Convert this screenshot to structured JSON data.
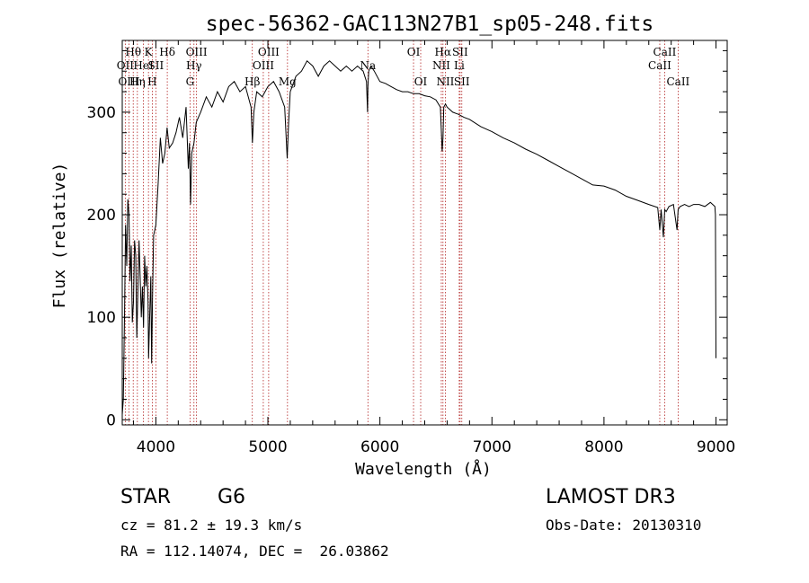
{
  "chart_data": {
    "type": "line",
    "title": "spec-56362-GAC113N27B1_sp05-248.fits",
    "xlabel": "Wavelength (Å)",
    "ylabel": "Flux (relative)",
    "xlim": [
      3700,
      9100
    ],
    "ylim": [
      -5,
      370
    ],
    "xticks": [
      4000,
      5000,
      6000,
      7000,
      8000,
      9000
    ],
    "yticks": [
      0,
      100,
      200,
      300
    ],
    "series": [
      {
        "name": "spectrum",
        "x": [
          3700,
          3710,
          3720,
          3730,
          3740,
          3750,
          3760,
          3770,
          3780,
          3790,
          3800,
          3810,
          3820,
          3830,
          3840,
          3850,
          3860,
          3870,
          3880,
          3890,
          3900,
          3910,
          3920,
          3930,
          3935,
          3945,
          3955,
          3962,
          3970,
          3980,
          4000,
          4020,
          4040,
          4060,
          4080,
          4100,
          4120,
          4150,
          4180,
          4210,
          4240,
          4270,
          4290,
          4300,
          4310,
          4320,
          4340,
          4360,
          4400,
          4450,
          4500,
          4550,
          4600,
          4650,
          4700,
          4750,
          4800,
          4850,
          4862,
          4875,
          4900,
          4950,
          5000,
          5050,
          5100,
          5150,
          5172,
          5185,
          5200,
          5250,
          5300,
          5350,
          5400,
          5450,
          5500,
          5550,
          5600,
          5650,
          5700,
          5750,
          5800,
          5850,
          5880,
          5890,
          5893,
          5900,
          5920,
          5950,
          6000,
          6050,
          6100,
          6150,
          6200,
          6250,
          6300,
          6350,
          6400,
          6450,
          6500,
          6540,
          6556,
          6563,
          6570,
          6585,
          6600,
          6650,
          6700,
          6750,
          6800,
          6900,
          7000,
          7100,
          7200,
          7300,
          7400,
          7500,
          7600,
          7700,
          7800,
          7900,
          8000,
          8100,
          8200,
          8300,
          8400,
          8480,
          8498,
          8510,
          8530,
          8542,
          8555,
          8580,
          8620,
          8652,
          8662,
          8680,
          8720,
          8760,
          8800,
          8850,
          8900,
          8950,
          8990,
          8995,
          9000
        ],
        "y": [
          5,
          20,
          100,
          190,
          150,
          215,
          200,
          135,
          170,
          95,
          115,
          175,
          160,
          80,
          125,
          175,
          140,
          100,
          130,
          90,
          160,
          130,
          150,
          115,
          60,
          100,
          140,
          55,
          120,
          180,
          190,
          230,
          275,
          250,
          260,
          285,
          265,
          270,
          280,
          295,
          275,
          305,
          245,
          270,
          210,
          260,
          270,
          290,
          300,
          315,
          305,
          320,
          310,
          325,
          330,
          320,
          325,
          305,
          270,
          300,
          320,
          315,
          325,
          330,
          320,
          305,
          255,
          290,
          320,
          335,
          340,
          350,
          345,
          335,
          345,
          350,
          345,
          340,
          345,
          340,
          345,
          340,
          330,
          300,
          325,
          340,
          345,
          340,
          330,
          328,
          325,
          322,
          320,
          320,
          318,
          318,
          316,
          315,
          312,
          305,
          262,
          275,
          305,
          308,
          305,
          300,
          298,
          295,
          293,
          286,
          281,
          275,
          270,
          264,
          259,
          253,
          247,
          241,
          235,
          229,
          228,
          224,
          218,
          214,
          210,
          207,
          185,
          205,
          178,
          205,
          203,
          208,
          210,
          185,
          205,
          208,
          210,
          208,
          210,
          210,
          208,
          212,
          208,
          200,
          60
        ]
      }
    ],
    "spectral_lines": [
      {
        "label": "Hθ",
        "x": 3798,
        "row": 1
      },
      {
        "label": "OII",
        "x": 3727,
        "row": 2
      },
      {
        "label": "OIII",
        "x": 3760,
        "row": 3
      },
      {
        "label": "Hη",
        "x": 3835,
        "row": 3
      },
      {
        "label": "HeI",
        "x": 3889,
        "row": 2
      },
      {
        "label": "K",
        "x": 3934,
        "row": 1
      },
      {
        "label": "SII",
        "x": 4000,
        "row": 2
      },
      {
        "label": "H",
        "x": 3968,
        "row": 3
      },
      {
        "label": "Hδ",
        "x": 4102,
        "row": 1
      },
      {
        "label": "OIII",
        "x": 4363,
        "row": 1
      },
      {
        "label": "Hγ",
        "x": 4340,
        "row": 2
      },
      {
        "label": "G",
        "x": 4305,
        "row": 3
      },
      {
        "label": "OIII",
        "x": 5007,
        "row": 1
      },
      {
        "label": "OIII",
        "x": 4959,
        "row": 2
      },
      {
        "label": "Hβ",
        "x": 4861,
        "row": 3
      },
      {
        "label": "Mg",
        "x": 5175,
        "row": 3
      },
      {
        "label": "Na",
        "x": 5893,
        "row": 2
      },
      {
        "label": "OI",
        "x": 6300,
        "row": 1
      },
      {
        "label": "OI",
        "x": 6364,
        "row": 3
      },
      {
        "label": "Hα",
        "x": 6563,
        "row": 1
      },
      {
        "label": "SII",
        "x": 6716,
        "row": 1
      },
      {
        "label": "NII",
        "x": 6548,
        "row": 2
      },
      {
        "label": "Li",
        "x": 6708,
        "row": 2
      },
      {
        "label": "NII",
        "x": 6584,
        "row": 3
      },
      {
        "label": "SII",
        "x": 6731,
        "row": 3
      },
      {
        "label": "CaII",
        "x": 8542,
        "row": 1
      },
      {
        "label": "CaII",
        "x": 8498,
        "row": 2
      },
      {
        "label": "CaII",
        "x": 8662,
        "row": 3
      }
    ]
  },
  "footer": {
    "object_class": "STAR",
    "subclass": "G6",
    "survey": "LAMOST DR3",
    "cz": "cz = 81.2 ± 19.3 km/s",
    "obs_date": "Obs-Date: 20130310",
    "coords": "RA = 112.14074, DEC =  26.03862"
  },
  "colors": {
    "line_marker": "#b22222",
    "spectrum": "#000000"
  }
}
